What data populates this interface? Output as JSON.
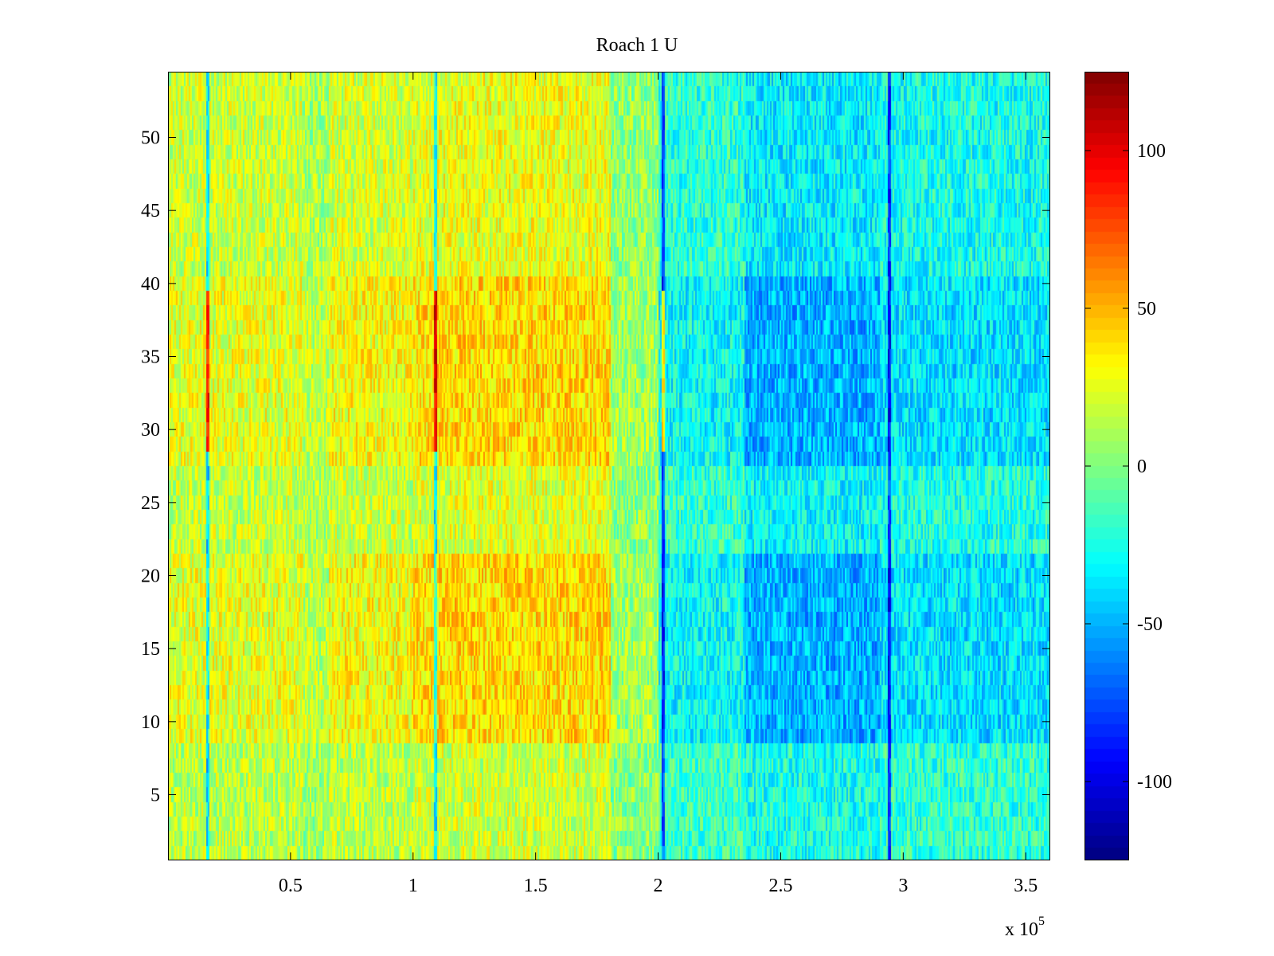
{
  "chart_data": {
    "type": "heatmap",
    "title": "Roach 1 U",
    "xlabel": "",
    "ylabel": "",
    "x_exponent_label": "x 10",
    "x_exponent_power": "5",
    "xlim": [
      0,
      3.6
    ],
    "ylim": [
      0.5,
      54.5
    ],
    "rows": 54,
    "x_ticks": [
      0.5,
      1,
      1.5,
      2,
      2.5,
      3,
      3.5
    ],
    "x_tick_labels": [
      "0.5",
      "1",
      "1.5",
      "2",
      "2.5",
      "3",
      "3.5"
    ],
    "y_ticks": [
      5,
      10,
      15,
      20,
      25,
      30,
      35,
      40,
      45,
      50
    ],
    "y_tick_labels": [
      "5",
      "10",
      "15",
      "20",
      "25",
      "30",
      "35",
      "40",
      "45",
      "50"
    ],
    "colormap": "jet",
    "clim": [
      -125,
      125
    ],
    "colorbar_ticks": [
      100,
      50,
      0,
      -50,
      -100
    ],
    "colorbar_tick_labels": [
      "100",
      "50",
      "0",
      "-50",
      "-100"
    ],
    "colorbar_location": "right",
    "grid": false,
    "value_structure": {
      "x_segment_breaks": [
        0.55,
        0.65,
        1.0,
        1.1,
        1.8,
        2.0,
        2.35,
        2.9,
        3.6
      ],
      "segment_means_mid_rows": [
        25,
        15,
        30,
        38,
        40,
        8,
        -30,
        -50,
        -38
      ],
      "segment_means_low_rows": [
        10,
        5,
        8,
        10,
        10,
        0,
        -10,
        -15,
        -12
      ],
      "row_band_strength": [
        {
          "rows": [
            1,
            8
          ],
          "factor": 0.3
        },
        {
          "rows": [
            9,
            21
          ],
          "factor": 1.0
        },
        {
          "rows": [
            22,
            27
          ],
          "factor": 0.45
        },
        {
          "rows": [
            28,
            40
          ],
          "factor": 1.0
        },
        {
          "rows": [
            41,
            54
          ],
          "factor": 0.55
        }
      ],
      "noise_amplitude": 22,
      "artifact_columns_x": [
        0.16,
        1.09,
        2.02,
        2.94
      ]
    }
  }
}
